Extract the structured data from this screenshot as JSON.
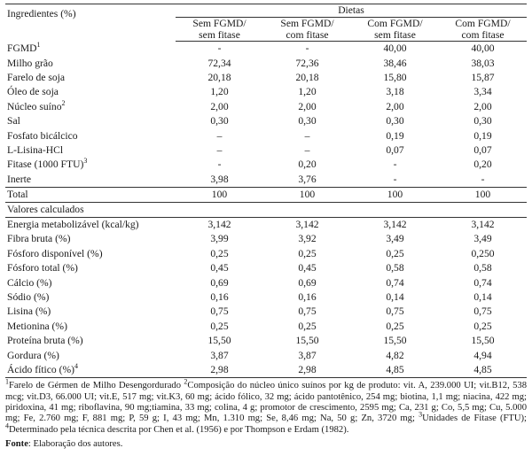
{
  "header": {
    "ingredients_label": "Ingredientes (%)",
    "group_label": "Dietas",
    "columns": [
      {
        "line1": "Sem FGMD/",
        "line2": "sem fitase"
      },
      {
        "line1": "Sem FGMD/",
        "line2": "com fitase"
      },
      {
        "line1": "Com FGMD/",
        "line2": "sem fitase"
      },
      {
        "line1": "Com FGMD/",
        "line2": "com fitase"
      }
    ]
  },
  "ingredients": [
    {
      "name": "FGMD",
      "sup": "1",
      "values": [
        "-",
        "-",
        "40,00",
        "40,00"
      ]
    },
    {
      "name": "Milho grão",
      "sup": "",
      "values": [
        "72,34",
        "72,36",
        "38,46",
        "38,03"
      ]
    },
    {
      "name": "Farelo de soja",
      "sup": "",
      "values": [
        "20,18",
        "20,18",
        "15,80",
        "15,87"
      ]
    },
    {
      "name": "Óleo de soja",
      "sup": "",
      "values": [
        "1,20",
        "1,20",
        "3,18",
        "3,34"
      ]
    },
    {
      "name": "Núcleo suíno",
      "sup": "2",
      "values": [
        "2,00",
        "2,00",
        "2,00",
        "2,00"
      ]
    },
    {
      "name": "Sal",
      "sup": "",
      "values": [
        "0,30",
        "0,30",
        "0,30",
        "0,30"
      ]
    },
    {
      "name": "Fosfato bicálcico",
      "sup": "",
      "values": [
        "–",
        "–",
        "0,19",
        "0,19"
      ]
    },
    {
      "name": "L-Lisina-HCl",
      "sup": "",
      "values": [
        "–",
        "–",
        "0,07",
        "0,07"
      ]
    },
    {
      "name": "Fitase (1000 FTU)",
      "sup": "3",
      "values": [
        "-",
        "0,20",
        "-",
        "0,20"
      ]
    },
    {
      "name": "Inerte",
      "sup": "",
      "values": [
        "3,98",
        "3,76",
        "-",
        "-"
      ]
    }
  ],
  "total": {
    "name": "Total",
    "values": [
      "100",
      "100",
      "100",
      "100"
    ]
  },
  "section_label": "Valores calculados",
  "calculated": [
    {
      "name": "Energia metabolizável (kcal/kg)",
      "sup": "",
      "values": [
        "3,142",
        "3,142",
        "3,142",
        "3,142"
      ]
    },
    {
      "name": "Fibra bruta (%)",
      "sup": "",
      "values": [
        "3,99",
        "3,92",
        "3,49",
        "3,49"
      ]
    },
    {
      "name": "Fósforo disponível (%)",
      "sup": "",
      "values": [
        "0,25",
        "0,25",
        "0,25",
        "0,250"
      ]
    },
    {
      "name": "Fósforo total (%)",
      "sup": "",
      "values": [
        "0,45",
        "0,45",
        "0,58",
        "0,58"
      ]
    },
    {
      "name": "Cálcio (%)",
      "sup": "",
      "values": [
        "0,69",
        "0,69",
        "0,74",
        "0,74"
      ]
    },
    {
      "name": "Sódio (%)",
      "sup": "",
      "values": [
        "0,16",
        "0,16",
        "0,14",
        "0,14"
      ]
    },
    {
      "name": "Lisina (%)",
      "sup": "",
      "values": [
        "0,75",
        "0,75",
        "0,75",
        "0,75"
      ]
    },
    {
      "name": "Metionina (%)",
      "sup": "",
      "values": [
        "0,25",
        "0,25",
        "0,25",
        "0,25"
      ]
    },
    {
      "name": "Proteína bruta (%)",
      "sup": "",
      "values": [
        "15,50",
        "15,50",
        "15,50",
        "15,50"
      ]
    },
    {
      "name": "Gordura (%)",
      "sup": "",
      "values": [
        "3,87",
        "3,87",
        "4,82",
        "4,94"
      ]
    },
    {
      "name": "Ácido fítico (%)",
      "sup": "4",
      "values": [
        "2,98",
        "2,98",
        "4,85",
        "4,85"
      ]
    }
  ],
  "footnote": {
    "marker1": "1",
    "text1": "Farelo de Gérmen de Milho Desengordurado ",
    "marker2": "2",
    "text2": "Composição do núcleo único suínos por kg de produto: vit. A, 239.000 UI; vit.B12, 538 mcg; vit.D3, 66.000 UI; vit.E, 517 mg; vit.K3, 60 mg; ácido fólico, 32 mg; ácido pantotênico, 254 mg; biotina, 1,1 mg; niacina, 422 mg; piridoxina, 41 mg; riboflavina, 90 mg;tiamina, 33 mg; colina, 4 g; promotor de crescimento, 2595 mg; Ca, 231 g; Co, 5,5 mg; Cu, 5.000 mg; Fe, 2.760 mg; F, 881 mg; P, 59 g; I, 43 mg; Mn, 1.310 mg; Se, 8,46 mg; Na, 50 g; Zn, 3720 mg; ",
    "marker3": "3",
    "text3": "Unidades de Fitase (FTU); ",
    "marker4": "4",
    "text4": "Determinado pela técnica descrita por Chen et al. (1956) e por Thompson e Erdam (1982)."
  },
  "source": {
    "label": "Fonte",
    "text": ": Elaboração dos autores."
  }
}
